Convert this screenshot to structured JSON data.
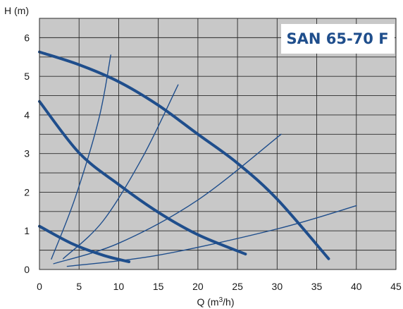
{
  "chart_data": {
    "type": "line",
    "title": "SAN 65-70 F",
    "xlabel": "Q (m³/h)",
    "xlabel_base": "Q (m",
    "xlabel_sup": "3",
    "xlabel_tail": "/h)",
    "ylabel": "H (m)",
    "xlim": [
      0,
      45
    ],
    "ylim": [
      0,
      6.5
    ],
    "x_ticks": [
      0,
      5,
      10,
      15,
      20,
      25,
      30,
      35,
      40,
      45
    ],
    "y_ticks": [
      0,
      1,
      2,
      3,
      4,
      5,
      6
    ],
    "grid": true,
    "colors": {
      "plot_background": "#c8c8c8",
      "grid": "#2a2a2a",
      "curve": "#1f4e8c",
      "title": "#1f4e8c",
      "title_box": "#ffffff"
    },
    "series": [
      {
        "kind": "pump-curve",
        "x": [
          0,
          5,
          10,
          15,
          20,
          25,
          30,
          36.5
        ],
        "y": [
          5.63,
          5.3,
          4.86,
          4.25,
          3.5,
          2.75,
          1.82,
          0.28
        ]
      },
      {
        "kind": "pump-curve",
        "x": [
          0,
          5,
          10,
          15,
          20,
          26
        ],
        "y": [
          4.35,
          3.02,
          2.2,
          1.48,
          0.9,
          0.4
        ]
      },
      {
        "kind": "pump-curve",
        "x": [
          0,
          4,
          8,
          11.3
        ],
        "y": [
          1.12,
          0.68,
          0.37,
          0.2
        ]
      },
      {
        "kind": "system-curve",
        "x": [
          1.5,
          4.5,
          7.5,
          9
        ],
        "y": [
          0.27,
          1.85,
          3.9,
          5.55
        ]
      },
      {
        "kind": "system-curve",
        "x": [
          3,
          8,
          13,
          17.5
        ],
        "y": [
          0.28,
          1.25,
          2.9,
          4.78
        ]
      },
      {
        "kind": "system-curve",
        "x": [
          1.8,
          10,
          20,
          30.5
        ],
        "y": [
          0.15,
          0.68,
          1.8,
          3.5
        ]
      },
      {
        "kind": "system-curve",
        "x": [
          3.5,
          15,
          30,
          40
        ],
        "y": [
          0.08,
          0.37,
          1.05,
          1.65
        ]
      }
    ]
  }
}
